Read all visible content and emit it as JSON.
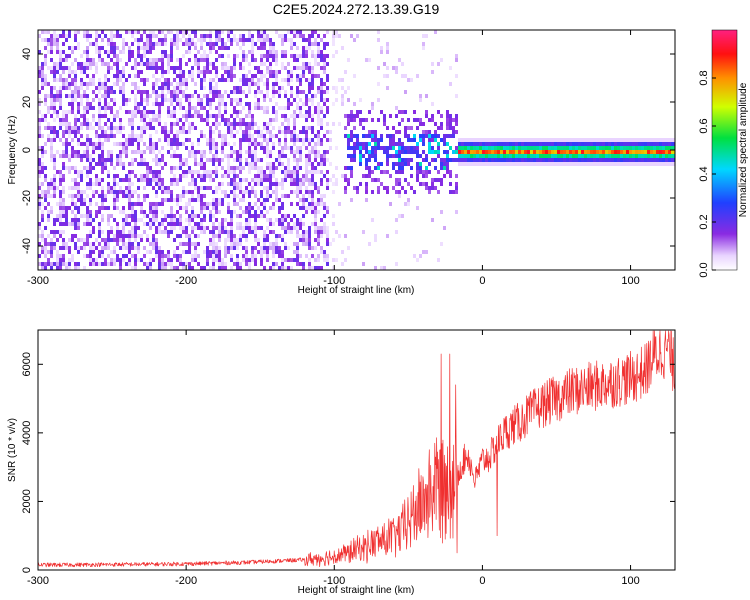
{
  "figure": {
    "title": "C2E5.2024.272.13.39.G19"
  },
  "chart_data": [
    {
      "type": "heatmap",
      "title": "",
      "xlabel": "Height of straight line (km)",
      "ylabel": "Frequency (Hz)",
      "xlim": [
        -300,
        130
      ],
      "ylim": [
        -50,
        50
      ],
      "xticks": [
        "-300",
        "-200",
        "-100",
        "0",
        "100"
      ],
      "xtick_values": [
        -300,
        -200,
        -100,
        0,
        100
      ],
      "yticks": [
        "-40",
        "-20",
        "0",
        "20",
        "40"
      ],
      "ytick_values": [
        -40,
        -20,
        0,
        20,
        40
      ],
      "colorbar": {
        "label": "Normalized spectral amplitude",
        "range": [
          0,
          1
        ],
        "ticks": [
          "0.0",
          "0.2",
          "0.4",
          "0.6",
          "0.8"
        ],
        "tick_values": [
          0.0,
          0.2,
          0.4,
          0.6,
          0.8
        ],
        "colormap": "rainbow (white-violet-blue-cyan-green-yellow-red-pink)"
      },
      "regions": [
        {
          "x_range": [
            -300,
            -105
          ],
          "freq_range": [
            -50,
            50
          ],
          "description": "diffuse noise",
          "typical_amplitude": 0.1
        },
        {
          "x_range": [
            -95,
            -18
          ],
          "freq_range": [
            -10,
            10
          ],
          "description": "scattered signal",
          "typical_amplitude": 0.3
        },
        {
          "x_range": [
            -18,
            130
          ],
          "freq_range": [
            -1,
            1
          ],
          "description": "coherent tone near 0 Hz",
          "typical_amplitude": 0.8
        }
      ],
      "grid": false
    },
    {
      "type": "line",
      "title": "",
      "xlabel": "Height of straight line (km)",
      "ylabel": "SNR (10 * v/v)",
      "xlim": [
        -300,
        130
      ],
      "ylim": [
        0,
        7000
      ],
      "xticks": [
        "-300",
        "-200",
        "-100",
        "0",
        "100"
      ],
      "xtick_values": [
        -300,
        -200,
        -100,
        0,
        100
      ],
      "yticks": [
        "0",
        "2000",
        "4000",
        "6000"
      ],
      "ytick_values": [
        0,
        2000,
        4000,
        6000
      ],
      "series_color": "#f03030",
      "grid": false,
      "series": [
        {
          "x": [
            -300,
            -280,
            -250,
            -220,
            -200,
            -180,
            -160,
            -140,
            -120,
            -110,
            -100,
            -95,
            -90,
            -85,
            -80,
            -75,
            -70,
            -65,
            -60,
            -55,
            -50,
            -45,
            -40,
            -35,
            -30,
            -25,
            -20,
            -17,
            -15,
            -10,
            -5,
            0,
            5,
            10,
            15,
            20,
            25,
            30,
            40,
            50,
            60,
            70,
            80,
            90,
            100,
            110,
            115,
            120,
            125,
            130
          ],
          "y": [
            150,
            150,
            160,
            170,
            180,
            200,
            220,
            260,
            300,
            340,
            400,
            450,
            500,
            600,
            650,
            750,
            850,
            900,
            1000,
            1100,
            1400,
            1700,
            2000,
            2300,
            2500,
            2600,
            2600,
            2700,
            3000,
            3400,
            2600,
            3200,
            3300,
            3700,
            4000,
            4200,
            4300,
            4500,
            4800,
            5000,
            5200,
            5300,
            5400,
            5500,
            5600,
            5800,
            6200,
            6400,
            6500,
            5800
          ],
          "spikes": [
            {
              "x": -28,
              "y": 6300
            },
            {
              "x": -24,
              "y": 2000
            },
            {
              "x": -22,
              "y": 6300
            },
            {
              "x": -18,
              "y": 5400
            },
            {
              "x": -17,
              "y": 500
            },
            {
              "x": 10,
              "y": 1000
            }
          ]
        }
      ]
    }
  ]
}
